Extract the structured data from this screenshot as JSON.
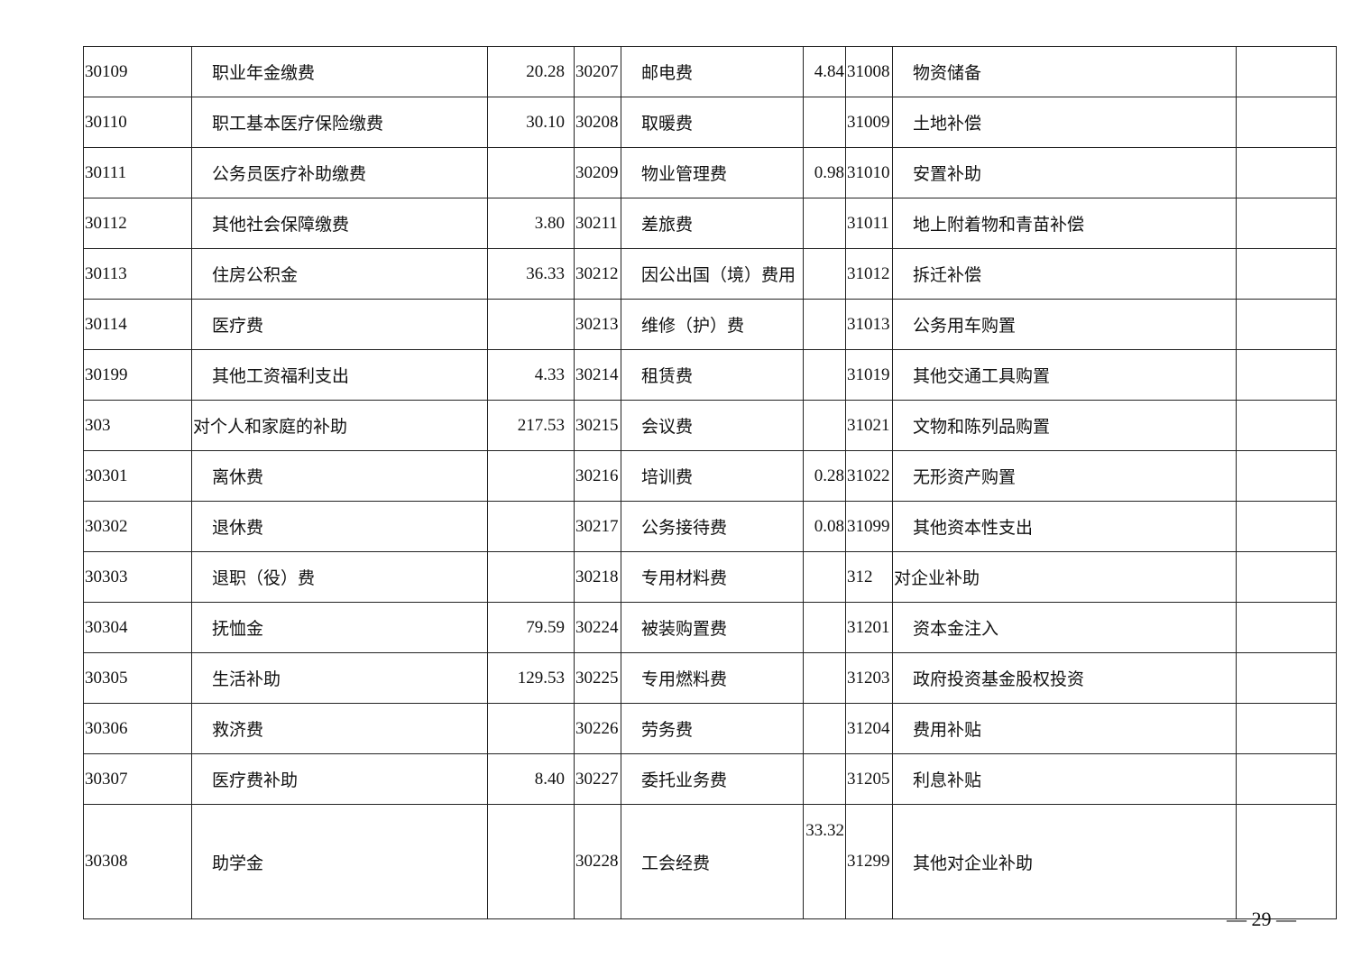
{
  "table": {
    "rows": [
      [
        "30109",
        "职业年金缴费",
        "20.28",
        "30207",
        "邮电费",
        "4.84",
        "31008",
        "物资储备",
        ""
      ],
      [
        "30110",
        "职工基本医疗保险缴费",
        "30.10",
        "30208",
        "取暖费",
        "",
        "31009",
        "土地补偿",
        ""
      ],
      [
        "30111",
        "公务员医疗补助缴费",
        "",
        "30209",
        "物业管理费",
        "0.98",
        "31010",
        "安置补助",
        ""
      ],
      [
        "30112",
        "其他社会保障缴费",
        "3.80",
        "30211",
        "差旅费",
        "",
        "31011",
        "地上附着物和青苗补偿",
        ""
      ],
      [
        "30113",
        "住房公积金",
        "36.33",
        "30212",
        "因公出国（境）费用",
        "",
        "31012",
        "拆迁补偿",
        ""
      ],
      [
        "30114",
        "医疗费",
        "",
        "30213",
        "维修（护）费",
        "",
        "31013",
        "公务用车购置",
        ""
      ],
      [
        "30199",
        "其他工资福利支出",
        "4.33",
        "30214",
        "租赁费",
        "",
        "31019",
        "其他交通工具购置",
        ""
      ],
      [
        "303",
        "对个人和家庭的补助",
        "217.53",
        "30215",
        "会议费",
        "",
        "31021",
        "文物和陈列品购置",
        ""
      ],
      [
        "30301",
        "离休费",
        "",
        "30216",
        "培训费",
        "0.28",
        "31022",
        "无形资产购置",
        ""
      ],
      [
        "30302",
        "退休费",
        "",
        "30217",
        "公务接待费",
        "0.08",
        "31099",
        "其他资本性支出",
        ""
      ],
      [
        "30303",
        "退职（役）费",
        "",
        "30218",
        "专用材料费",
        "",
        "312",
        "对企业补助",
        ""
      ],
      [
        "30304",
        "抚恤金",
        "79.59",
        "30224",
        "被装购置费",
        "",
        "31201",
        "资本金注入",
        ""
      ],
      [
        "30305",
        "生活补助",
        "129.53",
        "30225",
        "专用燃料费",
        "",
        "31203",
        "政府投资基金股权投资",
        ""
      ],
      [
        "30306",
        "救济费",
        "",
        "30226",
        "劳务费",
        "",
        "31204",
        "费用补贴",
        ""
      ],
      [
        "30307",
        "医疗费补助",
        "8.40",
        "30227",
        "委托业务费",
        "",
        "31205",
        "利息补贴",
        ""
      ],
      [
        "30308",
        "助学金",
        "",
        "30228",
        "工会经费",
        "33.32",
        "31299",
        "其他对企业补助",
        ""
      ]
    ]
  },
  "footer": {
    "page_number": "—  29  —"
  }
}
